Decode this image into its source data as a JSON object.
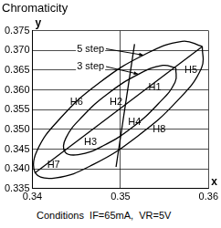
{
  "chart_data": {
    "type": "line",
    "title": "Chromaticity",
    "xlabel": "x",
    "ylabel": "y",
    "caption": "Conditions  IF=65mA,  VR=5V",
    "xlim": [
      0.34,
      0.36
    ],
    "xticks": [
      0.34,
      0.35,
      0.36
    ],
    "ylim": [
      0.335,
      0.375
    ],
    "yticks": [
      0.335,
      {
        "value": 0.34,
        "label": "0.340"
      },
      0.345,
      {
        "value": 0.35,
        "label": "0.350"
      },
      0.355,
      {
        "value": 0.36,
        "label": "0.360"
      },
      0.365,
      {
        "value": 0.37,
        "label": "0.370"
      },
      0.375
    ],
    "grid": true,
    "series": [
      {
        "color": "#000000",
        "line_style": "smooth",
        "x": [
          0.3593,
          0.3592,
          0.3564,
          0.3519,
          0.3469,
          0.3426,
          0.3403,
          0.3405,
          0.3432,
          0.3476,
          0.3527,
          0.357,
          0.3593
        ],
        "values": [
          0.371,
          0.3655,
          0.3571,
          0.3482,
          0.3411,
          0.3377,
          0.339,
          0.3445,
          0.3529,
          0.3618,
          0.3689,
          0.3723,
          0.371
        ]
      },
      {
        "color": "#000000",
        "line_style": "smooth",
        "x": [
          0.3563,
          0.3562,
          0.3543,
          0.3514,
          0.348,
          0.3452,
          0.3437,
          0.3438,
          0.3457,
          0.3486,
          0.352,
          0.3548,
          0.3563
        ],
        "values": [
          0.3655,
          0.3619,
          0.3565,
          0.3506,
          0.3458,
          0.3436,
          0.3443,
          0.3478,
          0.3533,
          0.3591,
          0.3639,
          0.3662,
          0.3655
        ]
      },
      {
        "color": "#000000",
        "line_style": "solid",
        "x": [
          0.3403,
          0.3593
        ],
        "values": [
          0.339,
          0.371
        ]
      },
      {
        "color": "#000000",
        "line_style": "solid",
        "x": [
          0.3495,
          0.3516
        ],
        "values": [
          0.3405,
          0.3716
        ]
      }
    ],
    "annotations": [
      {
        "text": "5 step",
        "x": 0.3466,
        "y": 0.3704,
        "points_to": [
          0.3526,
          0.3688
        ]
      },
      {
        "text": "3 step",
        "x": 0.3466,
        "y": 0.3659,
        "points_to": [
          0.352,
          0.364
        ]
      },
      {
        "text": "H1",
        "x": 0.3539,
        "y": 0.3606
      },
      {
        "text": "H2",
        "x": 0.3495,
        "y": 0.3568
      },
      {
        "text": "H3",
        "x": 0.3466,
        "y": 0.3467
      },
      {
        "text": "H4",
        "x": 0.3516,
        "y": 0.3518
      },
      {
        "text": "H5",
        "x": 0.358,
        "y": 0.3649
      },
      {
        "text": "H6",
        "x": 0.345,
        "y": 0.357
      },
      {
        "text": "H7",
        "x": 0.3424,
        "y": 0.341
      },
      {
        "text": "H8",
        "x": 0.3544,
        "y": 0.3499
      }
    ]
  }
}
